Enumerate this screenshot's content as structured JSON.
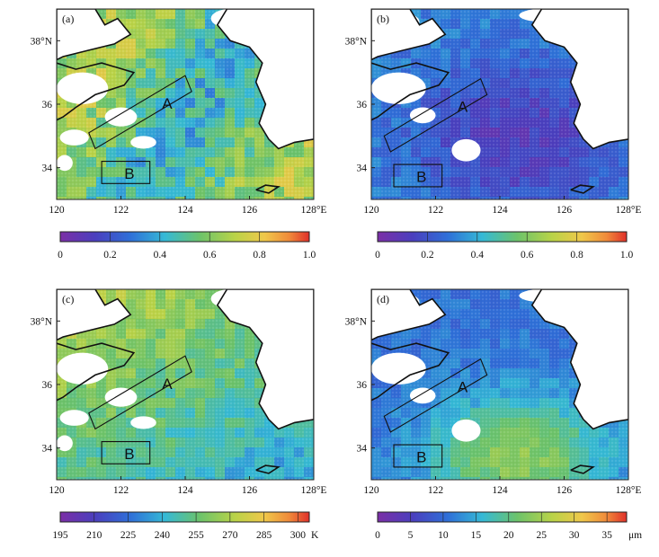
{
  "chart_data": [
    {
      "type": "heatmap",
      "panel_label": "(a)",
      "x_ticks": [
        "120",
        "122",
        "124",
        "126",
        "128°E"
      ],
      "y_ticks": [
        "38°N",
        "36",
        "34"
      ],
      "xlim": [
        120,
        128
      ],
      "ylim": [
        33,
        39
      ],
      "colorbar": {
        "ticks": [
          "0",
          "0.2",
          "0.4",
          "0.6",
          "0.8",
          "1.0"
        ],
        "unit": "",
        "range": [
          0,
          1
        ]
      },
      "dominant_level": 0.6,
      "boxes": [
        {
          "label": "A",
          "polygon": [
            [
              121.0,
              35.1
            ],
            [
              124.0,
              36.9
            ],
            [
              124.2,
              36.4
            ],
            [
              121.2,
              34.6
            ]
          ]
        },
        {
          "label": "B",
          "polygon": [
            [
              121.4,
              34.2
            ],
            [
              122.9,
              34.2
            ],
            [
              122.9,
              33.5
            ],
            [
              121.4,
              33.5
            ]
          ]
        }
      ]
    },
    {
      "type": "heatmap",
      "panel_label": "(b)",
      "x_ticks": [
        "120",
        "122",
        "124",
        "126",
        "128°E"
      ],
      "y_ticks": [
        "38°N",
        "36",
        "34"
      ],
      "xlim": [
        120,
        128
      ],
      "ylim": [
        33,
        39
      ],
      "colorbar": {
        "ticks": [
          "0",
          "0.2",
          "0.4",
          "0.6",
          "0.8",
          "1.0"
        ],
        "unit": "",
        "range": [
          0,
          1
        ]
      },
      "dominant_level": 0.2,
      "boxes": [
        {
          "label": "A",
          "polygon": [
            [
              120.4,
              35.0
            ],
            [
              123.4,
              36.8
            ],
            [
              123.6,
              36.3
            ],
            [
              120.6,
              34.5
            ]
          ]
        },
        {
          "label": "B",
          "polygon": [
            [
              120.7,
              34.1
            ],
            [
              122.2,
              34.1
            ],
            [
              122.2,
              33.4
            ],
            [
              120.7,
              33.4
            ]
          ]
        }
      ]
    },
    {
      "type": "heatmap",
      "panel_label": "(c)",
      "x_ticks": [
        "120",
        "122",
        "124",
        "126",
        "128°E"
      ],
      "y_ticks": [
        "38°N",
        "36",
        "34"
      ],
      "xlim": [
        120,
        128
      ],
      "ylim": [
        33,
        39
      ],
      "colorbar": {
        "ticks": [
          "195",
          "210",
          "225",
          "240",
          "255",
          "270",
          "285",
          "300"
        ],
        "unit": "K",
        "range": [
          195,
          305
        ]
      },
      "dominant_level": 0.55,
      "boxes": [
        {
          "label": "A",
          "polygon": [
            [
              121.0,
              35.1
            ],
            [
              124.0,
              36.9
            ],
            [
              124.2,
              36.4
            ],
            [
              121.2,
              34.6
            ]
          ]
        },
        {
          "label": "B",
          "polygon": [
            [
              121.4,
              34.2
            ],
            [
              122.9,
              34.2
            ],
            [
              122.9,
              33.5
            ],
            [
              121.4,
              33.5
            ]
          ]
        }
      ]
    },
    {
      "type": "heatmap",
      "panel_label": "(d)",
      "x_ticks": [
        "120",
        "122",
        "124",
        "126",
        "128°E"
      ],
      "y_ticks": [
        "38°N",
        "36",
        "34"
      ],
      "xlim": [
        120,
        128
      ],
      "ylim": [
        33,
        39
      ],
      "colorbar": {
        "ticks": [
          "0",
          "5",
          "10",
          "15",
          "20",
          "25",
          "30",
          "35"
        ],
        "unit": "μm",
        "range": [
          0,
          38
        ]
      },
      "dominant_level": 0.3,
      "boxes": [
        {
          "label": "A",
          "polygon": [
            [
              120.4,
              35.0
            ],
            [
              123.4,
              36.8
            ],
            [
              123.6,
              36.3
            ],
            [
              120.6,
              34.5
            ]
          ]
        },
        {
          "label": "B",
          "polygon": [
            [
              120.7,
              34.1
            ],
            [
              122.2,
              34.1
            ],
            [
              122.2,
              33.4
            ],
            [
              120.7,
              33.4
            ]
          ]
        }
      ]
    }
  ]
}
